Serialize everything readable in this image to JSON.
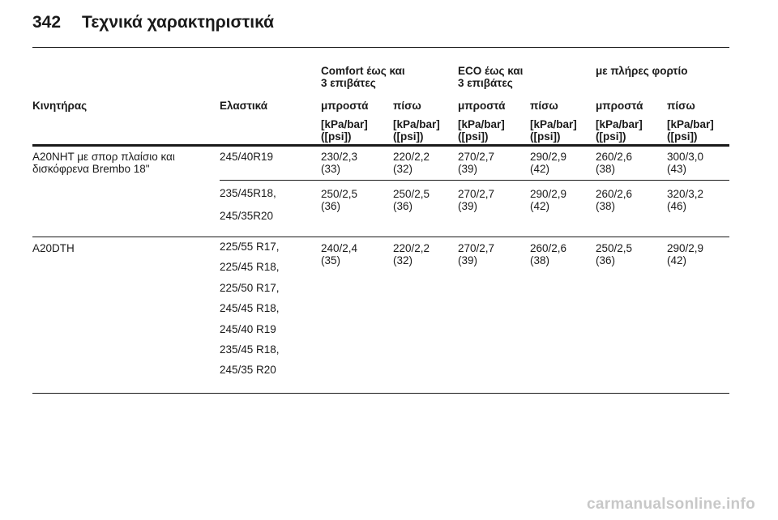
{
  "page": {
    "number": "342",
    "title": "Τεχνικά χαρακτηριστικά"
  },
  "header": {
    "groups": [
      "Comfort έως και\n3 επιβάτες",
      "ECO έως και\n3 επιβάτες",
      "με πλήρες φορτίο"
    ],
    "col_engine": "Κινητήρας",
    "col_tyres": "Ελαστικά",
    "front": "μπροστά",
    "rear": "πίσω",
    "unit": "[kPa/bar]\n([psi])"
  },
  "rows": [
    {
      "engine": "A20NHT με σπορ πλαίσιο και\nδισκόφρενα Brembo 18\"",
      "tyres": "245/40R19",
      "values": [
        "230/2,3\n(33)",
        "220/2,2\n(32)",
        "270/2,7\n(39)",
        "290/2,9\n(42)",
        "260/2,6\n(38)",
        "300/3,0\n(43)"
      ]
    },
    {
      "engine": "",
      "tyres": "235/45R18,\n\n245/35R20",
      "values": [
        "250/2,5\n(36)",
        "250/2,5\n(36)",
        "270/2,7\n(39)",
        "290/2,9\n(42)",
        "260/2,6\n(38)",
        "320/3,2\n(46)"
      ]
    },
    {
      "engine": "A20DTH",
      "tyres": "225/55 R17,\n\n225/45 R18,\n\n225/50 R17,\n\n245/45 R18,\n\n245/40 R19\n\n235/45 R18,\n\n245/35 R20",
      "values": [
        "240/2,4\n(35)",
        "220/2,2\n(32)",
        "270/2,7\n(39)",
        "260/2,6\n(38)",
        "250/2,5\n(36)",
        "290/2,9\n(42)"
      ]
    }
  ],
  "watermark": "carmanualsonline.info"
}
